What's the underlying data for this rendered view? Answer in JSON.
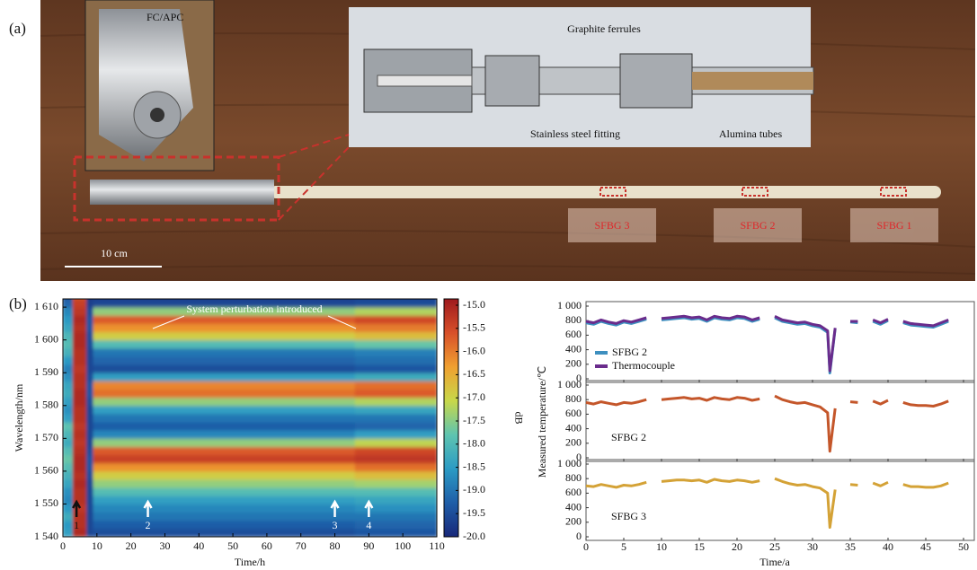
{
  "panel_a": {
    "label": "(a)",
    "connector": "FC/APC",
    "ferrules": "Graphite ferrules",
    "fitting": "Stainless steel fitting",
    "tubes": "Alumina tubes",
    "scale": "10 cm",
    "gratings": [
      "SFBG 3",
      "SFBG 2",
      "SFBG 1"
    ]
  },
  "panel_b_label": "(b)",
  "chart_data": [
    {
      "type": "heatmap",
      "annotation": "System perturbation introduced",
      "xlabel": "Time/h",
      "ylabel": "Wavelength/nm",
      "colorbar_label": "dB",
      "xbins": [
        0,
        3,
        7,
        9,
        86,
        110
      ],
      "ybins": [
        1540,
        1542.5,
        1545,
        1547.5,
        1550,
        1552.5,
        1555,
        1557.5,
        1560,
        1562.5,
        1565,
        1567.5,
        1570,
        1572.5,
        1575,
        1577.5,
        1580,
        1582.5,
        1585,
        1587.5,
        1590,
        1592.5,
        1595,
        1597.5,
        1600,
        1602.5,
        1605,
        1607.5,
        1610,
        1612.5,
        1615
      ],
      "z": [
        [
          -18.5,
          -15.2,
          -19.6,
          -19.5,
          -19.4
        ],
        [
          -18.6,
          -15.3,
          -19.6,
          -19.3,
          -19.2
        ],
        [
          -18.3,
          -15.3,
          -19.6,
          -19.0,
          -19.0
        ],
        [
          -18.6,
          -15.4,
          -19.6,
          -18.8,
          -18.7
        ],
        [
          -18.8,
          -15.3,
          -19.6,
          -18.5,
          -18.4
        ],
        [
          -18.7,
          -15.3,
          -19.6,
          -18.0,
          -18.0
        ],
        [
          -18.4,
          -15.2,
          -19.6,
          -17.5,
          -17.4
        ],
        [
          -18.2,
          -15.3,
          -19.5,
          -17.0,
          -16.8
        ],
        [
          -18.0,
          -15.2,
          -19.4,
          -16.3,
          -16.0
        ],
        [
          -17.8,
          -15.2,
          -19.4,
          -15.5,
          -15.4
        ],
        [
          -18.0,
          -15.3,
          -19.5,
          -15.8,
          -15.6
        ],
        [
          -18.3,
          -15.4,
          -19.6,
          -17.5,
          -17.2
        ],
        [
          -18.1,
          -15.3,
          -19.6,
          -18.8,
          -18.5
        ],
        [
          -17.9,
          -15.4,
          -19.6,
          -19.3,
          -19.2
        ],
        [
          -18.5,
          -15.3,
          -19.6,
          -19.0,
          -19.0
        ],
        [
          -18.7,
          -15.3,
          -19.6,
          -18.5,
          -18.4
        ],
        [
          -18.5,
          -15.2,
          -19.5,
          -17.5,
          -17.3
        ],
        [
          -18.3,
          -15.2,
          -19.4,
          -16.0,
          -15.8
        ],
        [
          -18.4,
          -15.3,
          -19.4,
          -16.2,
          -16.0
        ],
        [
          -18.7,
          -15.3,
          -19.5,
          -18.5,
          -18.3
        ],
        [
          -18.9,
          -15.4,
          -19.6,
          -19.5,
          -19.4
        ],
        [
          -18.6,
          -15.3,
          -19.6,
          -19.2,
          -19.1
        ],
        [
          -18.2,
          -15.3,
          -19.6,
          -19.0,
          -18.9
        ],
        [
          -18.0,
          -15.2,
          -19.5,
          -18.0,
          -17.8
        ],
        [
          -18.1,
          -15.2,
          -19.5,
          -17.0,
          -16.8
        ],
        [
          -18.4,
          -15.3,
          -19.4,
          -16.3,
          -16.1
        ],
        [
          -18.6,
          -15.2,
          -19.4,
          -15.8,
          -15.6
        ],
        [
          -18.8,
          -15.4,
          -19.5,
          -17.5,
          -17.3
        ],
        [
          -19.2,
          -15.5,
          -19.7,
          -19.6,
          -19.5
        ],
        [
          -19.5,
          -15.8,
          -19.8,
          -19.8,
          -19.8
        ]
      ],
      "xlim": [
        0,
        110
      ],
      "ylim": [
        1540,
        1612.5
      ],
      "xticks": [
        0,
        10,
        20,
        30,
        40,
        50,
        60,
        70,
        80,
        90,
        100,
        110
      ],
      "yticks": [
        {
          "value": 1540,
          "label": "1 540"
        },
        {
          "value": 1550,
          "label": "1 550"
        },
        {
          "value": 1560,
          "label": "1 560"
        },
        {
          "value": 1570,
          "label": "1 570"
        },
        {
          "value": 1580,
          "label": "1 580"
        },
        {
          "value": 1590,
          "label": "1 590"
        },
        {
          "value": 1600,
          "label": "1 600"
        },
        {
          "value": 1610,
          "label": "1 610"
        }
      ],
      "clim": [
        -20,
        -15
      ],
      "cticks": [
        {
          "value": -20,
          "label": "-20.0"
        },
        -19.5,
        {
          "value": -19,
          "label": "-19.0"
        },
        -18.5,
        {
          "value": -18,
          "label": "-18.0"
        },
        -17.5,
        {
          "value": -17,
          "label": "-17.0"
        },
        -16.5,
        {
          "value": -16,
          "label": "-16.0"
        },
        -15.5,
        {
          "value": -15,
          "label": "-15.0"
        }
      ],
      "colormap": [
        "#18287a",
        "#1f5ea8",
        "#2b9bc4",
        "#5ec4b0",
        "#c8d84a",
        "#f0a030",
        "#d8502a",
        "#9e1a1e"
      ],
      "markers": [
        {
          "label": "1",
          "x": 4,
          "color": "#111111"
        },
        {
          "label": "2",
          "x": 25,
          "color": "#ffffff"
        },
        {
          "label": "3",
          "x": 80,
          "color": "#ffffff"
        },
        {
          "label": "4",
          "x": 90,
          "color": "#ffffff"
        }
      ]
    },
    {
      "type": "line",
      "legend": "lower left",
      "x": [
        0,
        1,
        2,
        3,
        4,
        5,
        6,
        7,
        8,
        9,
        10,
        11,
        12,
        13,
        14,
        15,
        16,
        17,
        18,
        19,
        20,
        21,
        22,
        23,
        24,
        25,
        26,
        27,
        28,
        29,
        30,
        31,
        32,
        32.3,
        33,
        34,
        35,
        36,
        37,
        38,
        39,
        40,
        41,
        42,
        43,
        44,
        45,
        46,
        47,
        48
      ],
      "series": [
        {
          "name": "SFBG 2",
          "color": "#3d8fbf",
          "values": [
            770,
            750,
            790,
            760,
            740,
            780,
            760,
            790,
            820,
            null,
            810,
            820,
            830,
            840,
            820,
            830,
            790,
            840,
            820,
            810,
            840,
            830,
            790,
            820,
            null,
            840,
            790,
            770,
            750,
            760,
            730,
            710,
            640,
            80,
            690,
            null,
            780,
            770,
            null,
            790,
            750,
            800,
            null,
            770,
            740,
            730,
            720,
            710,
            750,
            790
          ]
        },
        {
          "name": "Thermocouple",
          "color": "#6a2c8c",
          "values": [
            790,
            770,
            810,
            780,
            760,
            800,
            780,
            810,
            840,
            null,
            830,
            840,
            850,
            860,
            840,
            850,
            810,
            860,
            840,
            830,
            860,
            850,
            810,
            840,
            null,
            860,
            810,
            790,
            770,
            780,
            750,
            730,
            660,
            110,
            700,
            null,
            790,
            790,
            null,
            810,
            770,
            820,
            null,
            790,
            760,
            750,
            740,
            730,
            770,
            810
          ]
        }
      ],
      "xlim": [
        0,
        50
      ],
      "ylim": [
        0,
        1000
      ],
      "xticks": [
        0,
        5,
        10,
        15,
        20,
        25,
        30,
        35,
        40,
        45,
        50
      ],
      "yticks": [
        0,
        200,
        400,
        600,
        800,
        {
          "value": 1000,
          "label": "1 000"
        }
      ]
    },
    {
      "type": "line",
      "legend": "lower left",
      "ylabel": "Measured temperature/℃",
      "x": [
        0,
        1,
        2,
        3,
        4,
        5,
        6,
        7,
        8,
        9,
        10,
        11,
        12,
        13,
        14,
        15,
        16,
        17,
        18,
        19,
        20,
        21,
        22,
        23,
        24,
        25,
        26,
        27,
        28,
        29,
        30,
        31,
        32,
        32.3,
        33,
        34,
        35,
        36,
        37,
        38,
        39,
        40,
        41,
        42,
        43,
        44,
        45,
        46,
        47,
        48
      ],
      "series": [
        {
          "name": "SFBG 2",
          "color": "#c4562a",
          "values": [
            760,
            740,
            770,
            750,
            730,
            760,
            750,
            770,
            800,
            null,
            800,
            810,
            820,
            830,
            810,
            820,
            790,
            830,
            810,
            800,
            830,
            820,
            790,
            810,
            null,
            850,
            800,
            770,
            750,
            760,
            730,
            700,
            620,
            90,
            680,
            null,
            770,
            760,
            null,
            780,
            740,
            790,
            null,
            760,
            730,
            720,
            720,
            710,
            740,
            780
          ]
        }
      ],
      "xlim": [
        0,
        50
      ],
      "ylim": [
        0,
        1000
      ],
      "xticks": [
        0,
        5,
        10,
        15,
        20,
        25,
        30,
        35,
        40,
        45,
        50
      ],
      "yticks": [
        0,
        200,
        400,
        600,
        800,
        {
          "value": 1000,
          "label": "1 000"
        }
      ]
    },
    {
      "type": "line",
      "legend": "lower left",
      "xlabel": "Time/a",
      "x": [
        0,
        1,
        2,
        3,
        4,
        5,
        6,
        7,
        8,
        9,
        10,
        11,
        12,
        13,
        14,
        15,
        16,
        17,
        18,
        19,
        20,
        21,
        22,
        23,
        24,
        25,
        26,
        27,
        28,
        29,
        30,
        31,
        32,
        32.3,
        33,
        34,
        35,
        36,
        37,
        38,
        39,
        40,
        41,
        42,
        43,
        44,
        45,
        46,
        47,
        48
      ],
      "series": [
        {
          "name": "SFBG 3",
          "color": "#d4a236",
          "values": [
            700,
            690,
            720,
            700,
            680,
            710,
            700,
            720,
            750,
            null,
            760,
            770,
            780,
            780,
            770,
            780,
            750,
            790,
            770,
            760,
            780,
            770,
            750,
            770,
            null,
            800,
            760,
            730,
            710,
            720,
            690,
            670,
            600,
            130,
            650,
            null,
            720,
            710,
            null,
            740,
            700,
            750,
            null,
            720,
            690,
            690,
            680,
            680,
            700,
            740
          ]
        }
      ],
      "xlim": [
        0,
        50
      ],
      "ylim": [
        0,
        1000
      ],
      "xticks": [
        0,
        5,
        10,
        15,
        20,
        25,
        30,
        35,
        40,
        45,
        50
      ],
      "yticks": [
        0,
        200,
        400,
        600,
        800,
        {
          "value": 1000,
          "label": "1 000"
        }
      ]
    }
  ]
}
